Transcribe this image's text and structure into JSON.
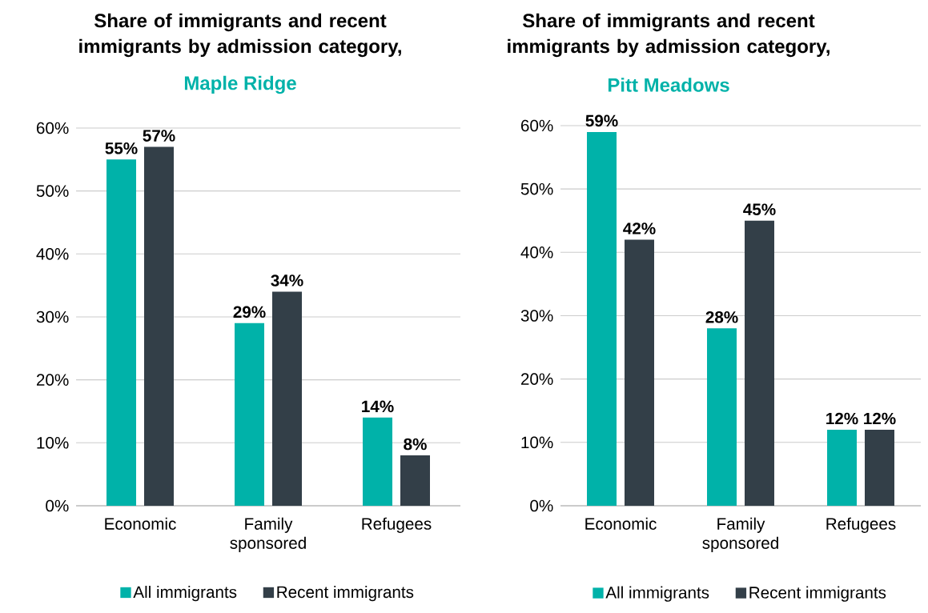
{
  "chart_data": [
    {
      "type": "bar",
      "title": "Share of immigrants and recent immigrants by admission category,",
      "subtitle": "Maple Ridge",
      "categories": [
        "Economic",
        "Family sponsored",
        "Refugees"
      ],
      "series": [
        {
          "name": "All immigrants",
          "color": "#00b2a9",
          "values": [
            55,
            29,
            14
          ],
          "value_labels": [
            "55%",
            "29%",
            "14%"
          ]
        },
        {
          "name": "Recent immigrants",
          "color": "#333f48",
          "values": [
            57,
            34,
            8
          ],
          "value_labels": [
            "57%",
            "34%",
            "8%"
          ]
        }
      ],
      "ylim": [
        0,
        60
      ],
      "yticks": [
        {
          "value": 0,
          "label": "0%"
        },
        {
          "value": 10,
          "label": "10%"
        },
        {
          "value": 20,
          "label": "20%"
        },
        {
          "value": 30,
          "label": "30%"
        },
        {
          "value": 40,
          "label": "40%"
        },
        {
          "value": 50,
          "label": "50%"
        },
        {
          "value": 60,
          "label": "60%"
        }
      ],
      "grid": "y",
      "legend": "bottom"
    },
    {
      "type": "bar",
      "title": "Share of immigrants and recent immigrants by admission category,",
      "subtitle": "Pitt Meadows",
      "categories": [
        "Economic",
        "Family sponsored",
        "Refugees"
      ],
      "series": [
        {
          "name": "All immigrants",
          "color": "#00b2a9",
          "values": [
            59,
            28,
            12
          ],
          "value_labels": [
            "59%",
            "28%",
            "12%"
          ]
        },
        {
          "name": "Recent immigrants",
          "color": "#333f48",
          "values": [
            42,
            45,
            12
          ],
          "value_labels": [
            "42%",
            "45%",
            "12%"
          ]
        }
      ],
      "ylim": [
        0,
        60
      ],
      "yticks": [
        {
          "value": 0,
          "label": "0%"
        },
        {
          "value": 10,
          "label": "10%"
        },
        {
          "value": 20,
          "label": "20%"
        },
        {
          "value": 30,
          "label": "30%"
        },
        {
          "value": 40,
          "label": "40%"
        },
        {
          "value": 50,
          "label": "50%"
        },
        {
          "value": 60,
          "label": "60%"
        }
      ],
      "grid": "y",
      "legend": "bottom"
    }
  ]
}
